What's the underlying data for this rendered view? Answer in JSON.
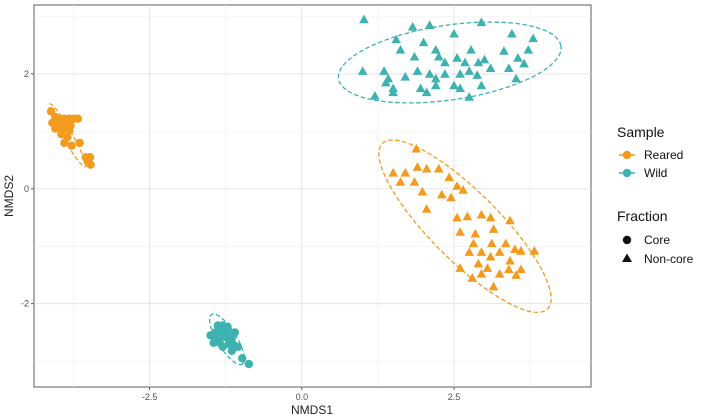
{
  "chart_data": {
    "type": "scatter",
    "title": "",
    "xlabel": "NMDS1",
    "ylabel": "NMDS2",
    "xlim": [
      -4.4,
      4.75
    ],
    "ylim": [
      -3.45,
      3.2
    ],
    "x_ticks": [
      -2.5,
      0.0,
      2.5
    ],
    "x_tick_labels": [
      "-2.5",
      "0.0",
      "2.5"
    ],
    "y_ticks": [
      -2,
      0,
      2
    ],
    "y_tick_labels": [
      "-2",
      "0",
      "2"
    ],
    "grid": true,
    "legend_position": "right",
    "legend": {
      "sample_title": "Sample",
      "sample_items": [
        {
          "label": "Reared",
          "color": "#F39B1F"
        },
        {
          "label": "Wild",
          "color": "#3DB2B0"
        }
      ],
      "fraction_title": "Fraction",
      "fraction_items": [
        {
          "label": "Core",
          "shape": "circle"
        },
        {
          "label": "Non-core",
          "shape": "triangle"
        }
      ]
    },
    "series": [
      {
        "sample": "Reared",
        "fraction": "Core",
        "color": "#F39B1F",
        "shape": "circle",
        "points": [
          [
            -4.12,
            1.35
          ],
          [
            -4.05,
            1.25
          ],
          [
            -3.98,
            1.22
          ],
          [
            -3.9,
            1.22
          ],
          [
            -3.82,
            1.22
          ],
          [
            -3.75,
            1.22
          ],
          [
            -3.68,
            1.22
          ],
          [
            -4.1,
            1.15
          ],
          [
            -4.02,
            1.15
          ],
          [
            -3.95,
            1.15
          ],
          [
            -3.88,
            1.12
          ],
          [
            -3.8,
            1.1
          ],
          [
            -4.05,
            1.05
          ],
          [
            -3.98,
            1.05
          ],
          [
            -3.9,
            1.05
          ],
          [
            -3.82,
            1.02
          ],
          [
            -3.95,
            0.95
          ],
          [
            -3.85,
            0.9
          ],
          [
            -3.9,
            0.8
          ],
          [
            -3.78,
            0.75
          ],
          [
            -3.65,
            0.8
          ],
          [
            -3.55,
            0.55
          ],
          [
            -3.48,
            0.55
          ],
          [
            -3.52,
            0.48
          ],
          [
            -3.47,
            0.42
          ]
        ]
      },
      {
        "sample": "Wild",
        "fraction": "Core",
        "color": "#3DB2B0",
        "shape": "circle",
        "points": [
          [
            -1.38,
            -2.38
          ],
          [
            -1.3,
            -2.38
          ],
          [
            -1.22,
            -2.4
          ],
          [
            -1.32,
            -2.45
          ],
          [
            -1.42,
            -2.5
          ],
          [
            -1.3,
            -2.5
          ],
          [
            -1.2,
            -2.5
          ],
          [
            -1.1,
            -2.5
          ],
          [
            -1.5,
            -2.55
          ],
          [
            -1.4,
            -2.6
          ],
          [
            -1.35,
            -2.6
          ],
          [
            -1.25,
            -2.58
          ],
          [
            -1.15,
            -2.6
          ],
          [
            -1.45,
            -2.68
          ],
          [
            -1.35,
            -2.68
          ],
          [
            -1.2,
            -2.7
          ],
          [
            -1.3,
            -2.75
          ],
          [
            -1.12,
            -2.72
          ],
          [
            -1.05,
            -2.75
          ],
          [
            -1.15,
            -2.82
          ],
          [
            -0.98,
            -2.95
          ],
          [
            -0.87,
            -3.05
          ]
        ]
      },
      {
        "sample": "Reared",
        "fraction": "Non-core",
        "color": "#F39B1F",
        "shape": "triangle",
        "points": [
          [
            1.88,
            0.7
          ],
          [
            1.5,
            0.28
          ],
          [
            1.7,
            0.28
          ],
          [
            1.9,
            0.38
          ],
          [
            2.05,
            0.35
          ],
          [
            2.25,
            0.35
          ],
          [
            1.62,
            0.12
          ],
          [
            1.85,
            0.12
          ],
          [
            2.42,
            0.2
          ],
          [
            2.55,
            0.05
          ],
          [
            2.65,
            -0.02
          ],
          [
            1.98,
            -0.05
          ],
          [
            2.3,
            -0.1
          ],
          [
            2.45,
            -0.15
          ],
          [
            2.05,
            -0.35
          ],
          [
            2.55,
            -0.5
          ],
          [
            2.72,
            -0.48
          ],
          [
            2.95,
            -0.45
          ],
          [
            3.1,
            -0.5
          ],
          [
            3.42,
            -0.55
          ],
          [
            2.6,
            -0.75
          ],
          [
            2.85,
            -0.78
          ],
          [
            3.15,
            -0.7
          ],
          [
            2.82,
            -0.95
          ],
          [
            3.12,
            -0.95
          ],
          [
            3.35,
            -0.95
          ],
          [
            3.5,
            -1.05
          ],
          [
            3.25,
            -1.1
          ],
          [
            3.6,
            -1.08
          ],
          [
            3.82,
            -1.08
          ],
          [
            2.75,
            -1.1
          ],
          [
            2.95,
            -1.1
          ],
          [
            3.1,
            -1.18
          ],
          [
            3.42,
            -1.25
          ],
          [
            2.9,
            -1.3
          ],
          [
            2.6,
            -1.38
          ],
          [
            3.05,
            -1.38
          ],
          [
            2.95,
            -1.48
          ],
          [
            2.8,
            -1.55
          ],
          [
            3.25,
            -1.48
          ],
          [
            3.4,
            -1.4
          ],
          [
            3.6,
            -1.4
          ],
          [
            3.52,
            -1.5
          ],
          [
            3.15,
            -1.7
          ]
        ]
      },
      {
        "sample": "Wild",
        "fraction": "Non-core",
        "color": "#3DB2B0",
        "shape": "triangle",
        "points": [
          [
            1.02,
            2.95
          ],
          [
            1.82,
            2.82
          ],
          [
            2.1,
            2.85
          ],
          [
            2.95,
            2.9
          ],
          [
            1.55,
            2.6
          ],
          [
            2.5,
            2.7
          ],
          [
            3.45,
            2.7
          ],
          [
            3.8,
            2.62
          ],
          [
            2.0,
            2.55
          ],
          [
            1.62,
            2.42
          ],
          [
            2.2,
            2.42
          ],
          [
            2.78,
            2.42
          ],
          [
            3.32,
            2.4
          ],
          [
            3.72,
            2.42
          ],
          [
            1.85,
            2.3
          ],
          [
            2.25,
            2.3
          ],
          [
            2.55,
            2.28
          ],
          [
            2.68,
            2.2
          ],
          [
            2.35,
            2.2
          ],
          [
            2.9,
            2.2
          ],
          [
            3.0,
            2.25
          ],
          [
            3.55,
            2.28
          ],
          [
            3.65,
            2.18
          ],
          [
            2.75,
            2.05
          ],
          [
            3.1,
            2.1
          ],
          [
            3.4,
            2.1
          ],
          [
            1.0,
            2.05
          ],
          [
            1.35,
            2.05
          ],
          [
            1.9,
            2.05
          ],
          [
            2.1,
            2.0
          ],
          [
            2.35,
            2.0
          ],
          [
            2.6,
            2.0
          ],
          [
            2.88,
            1.98
          ],
          [
            2.2,
            1.92
          ],
          [
            1.42,
            1.92
          ],
          [
            1.7,
            1.95
          ],
          [
            3.52,
            1.92
          ],
          [
            1.38,
            1.85
          ],
          [
            2.2,
            1.8
          ],
          [
            2.5,
            1.8
          ],
          [
            2.6,
            1.75
          ],
          [
            1.5,
            1.75
          ],
          [
            1.95,
            1.75
          ],
          [
            2.95,
            1.8
          ],
          [
            1.5,
            1.68
          ],
          [
            2.05,
            1.68
          ],
          [
            1.2,
            1.62
          ],
          [
            2.75,
            1.6
          ]
        ]
      }
    ],
    "ellipses": [
      {
        "sample": "Reared",
        "fraction": "Core",
        "color": "#F39B1F",
        "cx": -3.85,
        "cy": 0.93,
        "rx": 0.62,
        "ry": 0.08,
        "angle_deg": -62
      },
      {
        "sample": "Wild",
        "fraction": "Core",
        "color": "#3DB2B0",
        "cx": -1.23,
        "cy": -2.62,
        "rx": 0.5,
        "ry": 0.16,
        "angle_deg": -60
      },
      {
        "sample": "Reared",
        "fraction": "Non-core",
        "color": "#F39B1F",
        "cx": 2.68,
        "cy": -0.65,
        "rx": 1.98,
        "ry": 0.58,
        "angle_deg": -47
      },
      {
        "sample": "Wild",
        "fraction": "Non-core",
        "color": "#3DB2B0",
        "cx": 2.43,
        "cy": 2.2,
        "rx": 1.85,
        "ry": 0.65,
        "angle_deg": 9
      }
    ]
  }
}
